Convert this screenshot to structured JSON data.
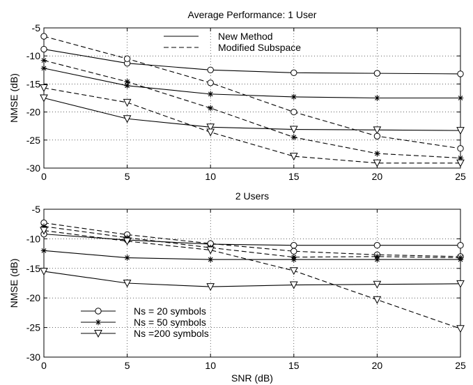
{
  "chart_data": [
    {
      "type": "line",
      "title": "Average Performance: 1 User",
      "xlabel": "",
      "ylabel": "NMSE (dB)",
      "xlim": [
        0,
        25
      ],
      "ylim": [
        -30,
        -5
      ],
      "xticks": [
        0,
        5,
        10,
        15,
        20,
        25
      ],
      "yticks": [
        -5,
        -10,
        -15,
        -20,
        -25,
        -30
      ],
      "grid": true,
      "x": [
        0,
        5,
        10,
        15,
        20,
        25
      ],
      "legend": {
        "placement": "top-center",
        "entries": [
          {
            "label": "New Method",
            "line": "solid"
          },
          {
            "label": "Modified Subspace",
            "line": "dashed"
          }
        ]
      },
      "series": [
        {
          "method": "new",
          "line": "solid",
          "marker": "circle",
          "values": [
            -8.8,
            -11.3,
            -12.5,
            -13.0,
            -13.1,
            -13.2
          ]
        },
        {
          "method": "new",
          "line": "solid",
          "marker": "star",
          "values": [
            -12.2,
            -15.3,
            -16.8,
            -17.3,
            -17.5,
            -17.5
          ]
        },
        {
          "method": "new",
          "line": "solid",
          "marker": "triangle",
          "values": [
            -17.5,
            -21.2,
            -22.7,
            -23.1,
            -23.2,
            -23.3
          ]
        },
        {
          "method": "subspace",
          "line": "dashed",
          "marker": "circle",
          "values": [
            -6.5,
            -10.5,
            -14.8,
            -20.0,
            -24.3,
            -26.5
          ]
        },
        {
          "method": "subspace",
          "line": "dashed",
          "marker": "star",
          "values": [
            -10.8,
            -14.6,
            -19.3,
            -24.5,
            -27.4,
            -28.2
          ]
        },
        {
          "method": "subspace",
          "line": "dashed",
          "marker": "triangle",
          "values": [
            -15.7,
            -18.3,
            -23.6,
            -27.9,
            -29.1,
            -29.1
          ]
        }
      ]
    },
    {
      "type": "line",
      "title": "2 Users",
      "xlabel": "SNR (dB)",
      "ylabel": "NMSE (dB)",
      "xlim": [
        0,
        25
      ],
      "ylim": [
        -30,
        -5
      ],
      "xticks": [
        0,
        5,
        10,
        15,
        20,
        25
      ],
      "yticks": [
        -5,
        -10,
        -15,
        -20,
        -25,
        -30
      ],
      "grid": true,
      "x": [
        0,
        5,
        10,
        15,
        20,
        25
      ],
      "legend": {
        "placement": "bottom-left",
        "entries": [
          {
            "label": "Ns = 20 symbols",
            "marker": "circle"
          },
          {
            "label": "Ns = 50 symbols",
            "marker": "star"
          },
          {
            "label": "Ns =200 symbols",
            "marker": "triangle"
          }
        ]
      },
      "series": [
        {
          "method": "new",
          "line": "solid",
          "marker": "circle",
          "values": [
            -9.2,
            -10.2,
            -10.9,
            -11.1,
            -11.1,
            -11.1
          ]
        },
        {
          "method": "new",
          "line": "solid",
          "marker": "star",
          "values": [
            -12.0,
            -13.2,
            -13.5,
            -13.5,
            -13.5,
            -13.5
          ]
        },
        {
          "method": "new",
          "line": "solid",
          "marker": "triangle",
          "values": [
            -15.5,
            -17.5,
            -18.1,
            -17.8,
            -17.7,
            -17.6
          ]
        },
        {
          "method": "subspace",
          "line": "dashed",
          "marker": "circle",
          "values": [
            -7.3,
            -9.3,
            -10.8,
            -12.1,
            -12.7,
            -13.0
          ]
        },
        {
          "method": "subspace",
          "line": "dashed",
          "marker": "star",
          "values": [
            -7.9,
            -9.8,
            -11.5,
            -13.1,
            -13.0,
            -13.2
          ]
        },
        {
          "method": "subspace",
          "line": "dashed",
          "marker": "triangle",
          "values": [
            -8.6,
            -10.4,
            -11.9,
            -15.4,
            -20.3,
            -25.2
          ]
        }
      ]
    }
  ]
}
